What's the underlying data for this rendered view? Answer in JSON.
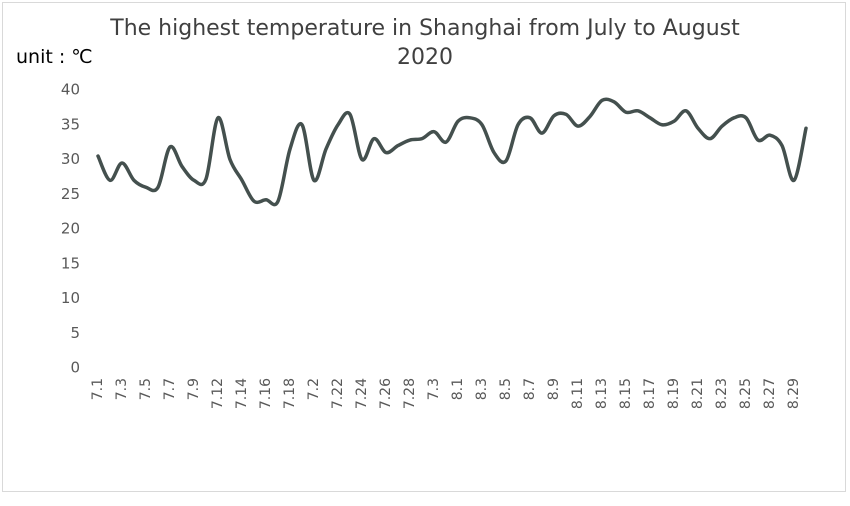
{
  "chart_data": {
    "type": "line",
    "title": "The highest temperature in Shanghai from July to August 2020",
    "y_label": "unit : ℃",
    "categories": [
      "7.1",
      null,
      "7.3",
      null,
      "7.5",
      null,
      "7.7",
      null,
      "7.9",
      null,
      "7.12",
      null,
      "7.14",
      null,
      "7.16",
      null,
      "7.18",
      null,
      "7.2",
      null,
      "7.22",
      null,
      "7.24",
      null,
      "7.26",
      null,
      "7.28",
      null,
      "7.3",
      null,
      "8.1",
      null,
      "8.3",
      null,
      "8.5",
      null,
      "8.7",
      null,
      "8.9",
      null,
      "8.11",
      null,
      "8.13",
      null,
      "8.15",
      null,
      "8.17",
      null,
      "8.19",
      null,
      "8.21",
      null,
      "8.23",
      null,
      "8.25",
      null,
      "8.27",
      null,
      "8.29",
      null
    ],
    "series": [
      {
        "color": "#44504e",
        "values": [
          30.5,
          27,
          29.5,
          27,
          26,
          26,
          31.8,
          29,
          27,
          27.2,
          36,
          30,
          27,
          24,
          24.2,
          24,
          31.5,
          35,
          27,
          31.5,
          35,
          36.5,
          30,
          33,
          31,
          32,
          32.8,
          33,
          34,
          32.5,
          35.5,
          36,
          35,
          31,
          29.8,
          35,
          36,
          33.8,
          36.3,
          36.5,
          34.8,
          36.2,
          38.5,
          38.3,
          36.8,
          37,
          36,
          35,
          35.5,
          37,
          34.5,
          33,
          34.8,
          36,
          36,
          32.8,
          33.5,
          32,
          27,
          34.5
        ]
      }
    ],
    "ylim": [
      0,
      40
    ],
    "yticks": [
      0,
      5,
      10,
      15,
      20,
      25,
      30,
      35,
      40
    ],
    "grid": false
  }
}
